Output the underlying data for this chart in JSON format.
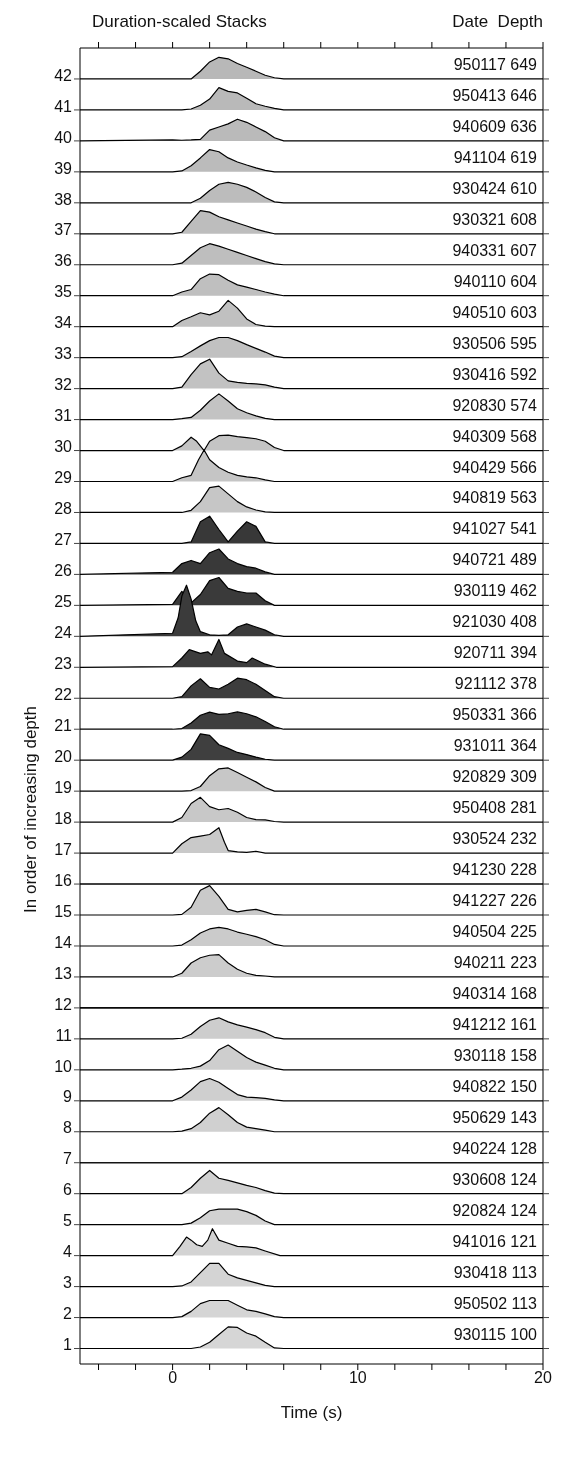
{
  "chart_data": {
    "type": "area",
    "title": "Duration-scaled Stacks",
    "xlabel": "Time (s)",
    "ylabel": "In order of increasing depth",
    "x": [
      -5,
      0,
      0.5,
      1,
      1.5,
      2,
      2.5,
      3,
      3.5,
      4,
      4.5,
      5,
      5.5,
      6,
      20
    ],
    "xlim": [
      -5,
      20
    ],
    "xticks": [
      {
        "value": -4,
        "label": null
      },
      {
        "value": -2,
        "label": null
      },
      0,
      {
        "value": 2,
        "label": null
      },
      {
        "value": 4,
        "label": null
      },
      {
        "value": 6,
        "label": null
      },
      {
        "value": 8,
        "label": null
      },
      10,
      {
        "value": 12,
        "label": null
      },
      {
        "value": 14,
        "label": null
      },
      {
        "value": 16,
        "label": null
      },
      {
        "value": 18,
        "label": null
      },
      20
    ],
    "ylim": [
      0.5,
      43
    ],
    "yticks": [
      1,
      2,
      3,
      4,
      5,
      6,
      7,
      8,
      9,
      10,
      11,
      12,
      13,
      14,
      15,
      16,
      17,
      18,
      19,
      20,
      21,
      22,
      23,
      24,
      25,
      26,
      27,
      28,
      29,
      30,
      31,
      32,
      33,
      34,
      35,
      36,
      37,
      38,
      39,
      40,
      41,
      42
    ],
    "annotations": [
      "Date  Depth",
      {
        "text": "950117 649",
        "y": 42
      },
      {
        "text": "950413 646",
        "y": 41
      },
      {
        "text": "940609 636",
        "y": 40
      },
      {
        "text": "941104 619",
        "y": 39
      },
      {
        "text": "930424 610",
        "y": 38
      },
      {
        "text": "930321 608",
        "y": 37
      },
      {
        "text": "940331 607",
        "y": 36
      },
      {
        "text": "940110 604",
        "y": 35
      },
      {
        "text": "940510 603",
        "y": 34
      },
      {
        "text": "930506 595",
        "y": 33
      },
      {
        "text": "930416 592",
        "y": 32
      },
      {
        "text": "920830 574",
        "y": 31
      },
      {
        "text": "940309 568",
        "y": 30
      },
      {
        "text": "940429 566",
        "y": 29
      },
      {
        "text": "940819 563",
        "y": 28
      },
      {
        "text": "941027 541",
        "y": 27
      },
      {
        "text": "940721 489",
        "y": 26
      },
      {
        "text": "930119 462",
        "y": 25
      },
      {
        "text": "921030 408",
        "y": 24
      },
      {
        "text": "920711 394",
        "y": 23
      },
      {
        "text": "921112 378",
        "y": 22
      },
      {
        "text": "950331 366",
        "y": 21
      },
      {
        "text": "931011 364",
        "y": 20
      },
      {
        "text": "920829 309",
        "y": 19
      },
      {
        "text": "950408 281",
        "y": 18
      },
      {
        "text": "930524 232",
        "y": 17
      },
      {
        "text": "941230 228",
        "y": 16
      },
      {
        "text": "941227 226",
        "y": 15
      },
      {
        "text": "940504 225",
        "y": 14
      },
      {
        "text": "940211 223",
        "y": 13
      },
      {
        "text": "940314 168",
        "y": 12
      },
      {
        "text": "941212 161",
        "y": 11
      },
      {
        "text": "930118 158",
        "y": 10
      },
      {
        "text": "940822 150",
        "y": 9
      },
      {
        "text": "950629 143",
        "y": 8
      },
      {
        "text": "940224 128",
        "y": 7
      },
      {
        "text": "930608 124",
        "y": 6
      },
      {
        "text": "920824 124",
        "y": 5
      },
      {
        "text": "941016 121",
        "y": 4
      },
      {
        "text": "930418 113",
        "y": 3
      },
      {
        "text": "950502 113",
        "y": 2
      },
      {
        "text": "930115 100",
        "y": 1
      }
    ],
    "series": [
      {
        "color": "#b8b8b8",
        "values": [
          42,
          42,
          42,
          42,
          42.25,
          42.55,
          42.7,
          42.65,
          42.5,
          42.38,
          42.25,
          42.12,
          42.04,
          42,
          42
        ]
      },
      {
        "color": "#b9b9b9",
        "values": [
          41,
          41,
          41,
          41.03,
          41.15,
          41.35,
          41.72,
          41.6,
          41.55,
          41.38,
          41.2,
          41.12,
          41.05,
          41,
          41
        ]
      },
      {
        "color": "#bababa",
        "values": [
          40,
          40.03,
          40.02,
          40.03,
          40.05,
          40.35,
          40.45,
          40.55,
          40.7,
          40.6,
          40.45,
          40.3,
          40.1,
          40,
          40
        ]
      },
      {
        "color": "#bbbbbb",
        "values": [
          39,
          39,
          39.03,
          39.2,
          39.45,
          39.72,
          39.65,
          39.45,
          39.32,
          39.22,
          39.13,
          39.05,
          39,
          39,
          39
        ]
      },
      {
        "color": "#bcbcbc",
        "values": [
          38,
          38,
          38,
          38,
          38.15,
          38.4,
          38.6,
          38.66,
          38.6,
          38.5,
          38.35,
          38.17,
          38.03,
          38,
          38
        ]
      },
      {
        "color": "#bdbdbd",
        "values": [
          37,
          37,
          37.05,
          37.4,
          37.75,
          37.7,
          37.55,
          37.45,
          37.35,
          37.25,
          37.15,
          37.07,
          37,
          37,
          37
        ]
      },
      {
        "color": "#bebebe",
        "values": [
          36,
          36,
          36.05,
          36.3,
          36.55,
          36.68,
          36.6,
          36.5,
          36.4,
          36.3,
          36.2,
          36.1,
          36.03,
          36,
          36
        ]
      },
      {
        "color": "#bfbfbf",
        "values": [
          35,
          35,
          35.12,
          35.2,
          35.55,
          35.7,
          35.68,
          35.5,
          35.35,
          35.28,
          35.2,
          35.12,
          35.05,
          35,
          35
        ]
      },
      {
        "color": "#c0c0c0",
        "values": [
          34,
          34,
          34.2,
          34.32,
          34.45,
          34.38,
          34.5,
          34.85,
          34.6,
          34.25,
          34.07,
          34.02,
          34,
          34,
          34
        ]
      },
      {
        "color": "#c1c1c1",
        "values": [
          33,
          33,
          33.03,
          33.2,
          33.38,
          33.55,
          33.65,
          33.65,
          33.55,
          33.42,
          33.3,
          33.18,
          33.05,
          33,
          33
        ]
      },
      {
        "color": "#c2c2c2",
        "values": [
          32,
          32,
          32.05,
          32.45,
          32.8,
          32.95,
          32.5,
          32.25,
          32.2,
          32.17,
          32.15,
          32.12,
          32.05,
          32,
          32
        ]
      },
      {
        "color": "#c3c3c3",
        "values": [
          31,
          31,
          31.03,
          31.07,
          31.3,
          31.6,
          31.83,
          31.6,
          31.35,
          31.22,
          31.12,
          31.04,
          31,
          31,
          31
        ]
      },
      {
        "color": "#c4c4c4",
        "x": [
          -5,
          0,
          0.5,
          1,
          1.3,
          1.7,
          2,
          2.5,
          3,
          3.5,
          4,
          4.5,
          5,
          5.5,
          6,
          20
        ],
        "values": [
          30,
          30,
          30.15,
          30.43,
          30.3,
          30,
          30.3,
          30.48,
          30.5,
          30.45,
          30.42,
          30.38,
          30.3,
          30.1,
          30,
          30
        ]
      },
      {
        "color": "#c5c5c5",
        "x": [
          -5,
          0,
          0.5,
          1,
          1.4,
          1.7,
          2,
          2.5,
          3,
          3.5,
          4,
          4.5,
          5,
          5.5,
          20
        ],
        "values": [
          29,
          29,
          29.12,
          29.2,
          29.7,
          30.02,
          29.7,
          29.45,
          29.3,
          29.2,
          29.15,
          29.12,
          29.05,
          29,
          29
        ]
      },
      {
        "color": "#c6c6c6",
        "values": [
          28,
          28,
          28,
          28.07,
          28.35,
          28.8,
          28.85,
          28.6,
          28.35,
          28.18,
          28.08,
          28.02,
          28,
          28,
          28
        ]
      },
      {
        "color": "#383838",
        "values": [
          27,
          27,
          27,
          27.05,
          27.7,
          27.88,
          27.45,
          27.05,
          27.4,
          27.7,
          27.55,
          27.05,
          27,
          27,
          27
        ]
      },
      {
        "color": "#393939",
        "values": [
          26,
          26.07,
          26.35,
          26.45,
          26.35,
          26.7,
          26.82,
          26.5,
          26.35,
          26.25,
          26.2,
          26.08,
          26,
          26,
          26
        ]
      },
      {
        "color": "#3a3a3a",
        "values": [
          25,
          25.03,
          25.45,
          25.08,
          25.35,
          25.8,
          25.9,
          25.55,
          25.45,
          25.4,
          25.4,
          25.15,
          25,
          25,
          25
        ]
      },
      {
        "color": "#3b3b3b",
        "x": [
          -5,
          0,
          0.3,
          0.5,
          0.75,
          1,
          1.25,
          1.5,
          2,
          2.5,
          3,
          3.5,
          4,
          4.5,
          5,
          5.5,
          6,
          20
        ],
        "values": [
          24,
          24.1,
          24.6,
          25.3,
          25.65,
          25.2,
          24.5,
          24.15,
          24.05,
          24.03,
          24.05,
          24.3,
          24.4,
          24.3,
          24.2,
          24.05,
          24,
          24
        ]
      },
      {
        "color": "#3c3c3c",
        "x": [
          -5,
          0,
          0.5,
          0.9,
          1.5,
          1.9,
          2.1,
          2.5,
          2.8,
          3.5,
          4,
          4.3,
          5,
          5.6,
          20
        ],
        "values": [
          23,
          23.02,
          23.3,
          23.57,
          23.45,
          23.5,
          23.4,
          23.9,
          23.45,
          23.2,
          23.15,
          23.3,
          23.1,
          23,
          23
        ]
      },
      {
        "color": "#3d3d3d",
        "values": [
          22,
          22,
          22.05,
          22.4,
          22.63,
          22.35,
          22.3,
          22.45,
          22.65,
          22.6,
          22.45,
          22.25,
          22.05,
          22,
          22
        ]
      },
      {
        "color": "#3e3e3e",
        "values": [
          21,
          21,
          21.02,
          21.2,
          21.45,
          21.55,
          21.48,
          21.5,
          21.56,
          21.5,
          21.4,
          21.25,
          21.08,
          21,
          21
        ]
      },
      {
        "color": "#3f3f3f",
        "values": [
          20,
          20,
          20.1,
          20.35,
          20.85,
          20.8,
          20.5,
          20.38,
          20.25,
          20.18,
          20.1,
          20.03,
          20,
          20,
          20
        ]
      },
      {
        "color": "#c7c7c7",
        "values": [
          19,
          19,
          19,
          19.02,
          19.15,
          19.5,
          19.72,
          19.75,
          19.6,
          19.45,
          19.3,
          19.12,
          19,
          19,
          19
        ]
      },
      {
        "color": "#c8c8c8",
        "values": [
          18,
          18,
          18.15,
          18.6,
          18.8,
          18.5,
          18.4,
          18.44,
          18.32,
          18.15,
          18.08,
          18.07,
          18.02,
          18,
          18
        ]
      },
      {
        "color": "#c9c9c9",
        "x": [
          -5,
          0,
          0.5,
          1,
          1.5,
          2,
          2.5,
          2.8,
          3,
          3.5,
          4,
          4.5,
          5,
          20
        ],
        "values": [
          17,
          17,
          17.3,
          17.5,
          17.55,
          17.6,
          17.82,
          17.35,
          17.08,
          17.04,
          17.02,
          17.06,
          17,
          17
        ]
      },
      {
        "type": "line",
        "color": "#000000",
        "values": [
          16,
          16,
          16,
          16,
          16,
          16,
          16,
          16,
          16,
          16,
          16,
          16,
          16,
          16,
          16
        ]
      },
      {
        "color": "#cacaca",
        "values": [
          15,
          15,
          15.02,
          15.25,
          15.8,
          15.95,
          15.6,
          15.18,
          15.1,
          15.15,
          15.18,
          15.1,
          15.01,
          15,
          15
        ]
      },
      {
        "color": "#cbcbcb",
        "values": [
          14,
          14,
          14.03,
          14.2,
          14.42,
          14.55,
          14.6,
          14.55,
          14.45,
          14.38,
          14.3,
          14.2,
          14.05,
          14,
          14
        ]
      },
      {
        "color": "#cccccc",
        "values": [
          13,
          13,
          13.12,
          13.45,
          13.62,
          13.7,
          13.72,
          13.45,
          13.25,
          13.12,
          13.05,
          13.03,
          13,
          13,
          13
        ]
      },
      {
        "type": "line",
        "color": "#0a0a0a",
        "values": [
          12,
          12,
          12,
          12,
          12,
          12,
          12,
          12,
          12,
          12,
          12,
          12,
          12,
          12,
          12
        ]
      },
      {
        "color": "#cdcdcd",
        "values": [
          11,
          11,
          11.02,
          11.15,
          11.4,
          11.6,
          11.68,
          11.55,
          11.45,
          11.38,
          11.3,
          11.2,
          11.05,
          11,
          11
        ]
      },
      {
        "color": "#cecece",
        "values": [
          10,
          10,
          10.02,
          10.05,
          10.12,
          10.3,
          10.65,
          10.8,
          10.6,
          10.4,
          10.25,
          10.15,
          10.05,
          10,
          10
        ]
      },
      {
        "color": "#cfcfcf",
        "values": [
          9,
          9,
          9.12,
          9.35,
          9.62,
          9.72,
          9.6,
          9.4,
          9.2,
          9.12,
          9.1,
          9.08,
          9.03,
          9,
          9
        ]
      },
      {
        "color": "#d0d0d0",
        "values": [
          8,
          8,
          8.02,
          8.1,
          8.3,
          8.6,
          8.78,
          8.55,
          8.3,
          8.15,
          8.1,
          8.05,
          8,
          8,
          8
        ]
      },
      {
        "type": "line",
        "color": "#141414",
        "values": [
          7,
          7,
          7,
          7,
          7,
          7,
          7,
          7,
          7,
          7,
          7,
          7,
          7,
          7,
          7
        ]
      },
      {
        "color": "#d1d1d1",
        "values": [
          6,
          6,
          6,
          6.2,
          6.5,
          6.75,
          6.5,
          6.43,
          6.35,
          6.27,
          6.2,
          6.1,
          6.02,
          6,
          6
        ]
      },
      {
        "color": "#d2d2d2",
        "values": [
          5,
          5,
          5,
          5.05,
          5.22,
          5.45,
          5.5,
          5.5,
          5.5,
          5.42,
          5.3,
          5.12,
          5,
          5,
          5
        ]
      },
      {
        "color": "#d3d3d3",
        "x": [
          -5,
          0,
          0.4,
          0.75,
          1,
          1.3,
          1.6,
          1.9,
          2.15,
          2.5,
          3,
          3.5,
          4,
          4.5,
          5,
          5.8,
          20
        ],
        "values": [
          4,
          4,
          4.3,
          4.6,
          4.5,
          4.35,
          4.3,
          4.5,
          4.87,
          4.5,
          4.4,
          4.3,
          4.28,
          4.25,
          4.15,
          4,
          4
        ]
      },
      {
        "color": "#d4d4d4",
        "values": [
          3,
          3,
          3.02,
          3.15,
          3.45,
          3.75,
          3.75,
          3.4,
          3.28,
          3.2,
          3.12,
          3.04,
          3,
          3,
          3
        ]
      },
      {
        "color": "#d5d5d5",
        "values": [
          2,
          2,
          2.03,
          2.2,
          2.45,
          2.55,
          2.55,
          2.55,
          2.4,
          2.25,
          2.2,
          2.12,
          2.03,
          2,
          2
        ]
      },
      {
        "color": "#d6d6d6",
        "values": [
          1,
          1,
          1,
          1,
          1.05,
          1.2,
          1.45,
          1.7,
          1.68,
          1.5,
          1.4,
          1.2,
          1.02,
          1,
          1
        ]
      }
    ]
  }
}
